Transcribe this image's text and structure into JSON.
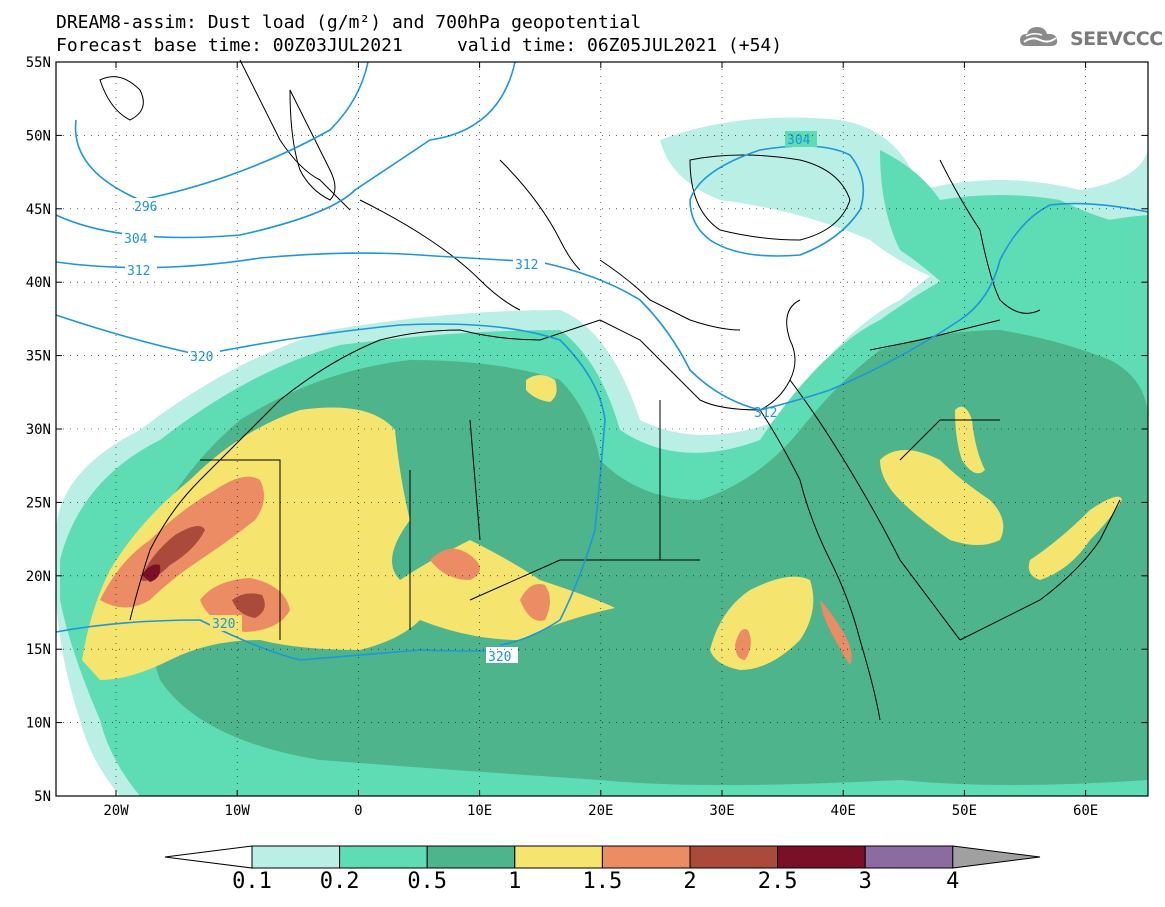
{
  "header": {
    "title_line1": "DREAM8-assim: Dust load (g/m²) and 700hPa geopotential",
    "title_line2": "Forecast base time: 00Z03JUL2021     valid time: 06Z05JUL2021 (+54)"
  },
  "logo": {
    "text": "SEEVCCC",
    "icon": "cloud-logo-icon"
  },
  "axes": {
    "lat_labels": [
      "55N",
      "50N",
      "45N",
      "40N",
      "35N",
      "30N",
      "25N",
      "20N",
      "15N",
      "10N",
      "5N"
    ],
    "lon_labels": [
      "20W",
      "10W",
      "0",
      "10E",
      "20E",
      "30E",
      "40E",
      "50E",
      "60E"
    ]
  },
  "contours": {
    "labels": [
      "296",
      "304",
      "312",
      "320",
      "304",
      "312",
      "312",
      "320",
      "320"
    ]
  },
  "colorbar": {
    "labels": [
      "0.1",
      "0.2",
      "0.5",
      "1",
      "1.5",
      "2",
      "2.5",
      "3",
      "4"
    ],
    "colors": [
      "#b9efe4",
      "#5edcb4",
      "#4db48c",
      "#f5e46e",
      "#eb8c64",
      "#aa4a3a",
      "#7a1028",
      "#8c6ca0",
      "#a0a0a0"
    ]
  },
  "colors": {
    "contour": "#1e96dc",
    "border": "#000000",
    "land_bg": "#ffffff"
  }
}
